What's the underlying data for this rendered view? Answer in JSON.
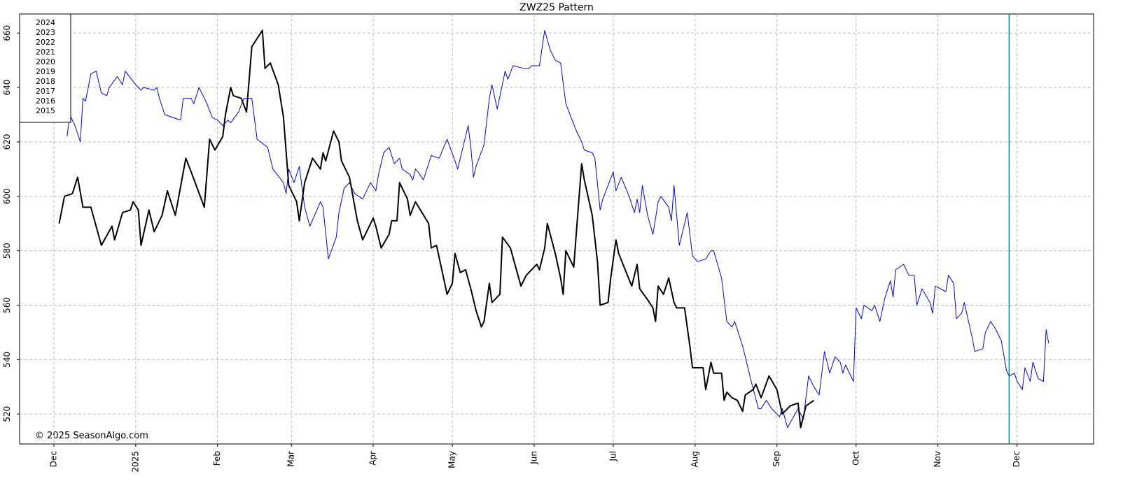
{
  "chart_data": {
    "type": "line",
    "title": "ZWZ25  Pattern",
    "watermark": "© 2025 SeasonAlgo.com",
    "legend_labels": [
      "2024",
      "2023",
      "2022",
      "2021",
      "2020",
      "2019",
      "2018",
      "2017",
      "2016",
      "2015"
    ],
    "legend_color": "#0000ff",
    "legend_position": "upper-left",
    "grid": true,
    "xlim": [
      -13,
      394
    ],
    "ylim": [
      509,
      667
    ],
    "yticks": [
      520,
      540,
      560,
      580,
      600,
      620,
      640,
      660
    ],
    "xticks": [
      {
        "value": 0,
        "label": "Dec"
      },
      {
        "value": 31,
        "label": "2025"
      },
      {
        "value": 62,
        "label": "Feb"
      },
      {
        "value": 90,
        "label": "Mar"
      },
      {
        "value": 121,
        "label": "Apr"
      },
      {
        "value": 151,
        "label": "May"
      },
      {
        "value": 182,
        "label": "Jun"
      },
      {
        "value": 212,
        "label": "Jul"
      },
      {
        "value": 243,
        "label": "Aug"
      },
      {
        "value": 274,
        "label": "Sep"
      },
      {
        "value": 304,
        "label": "Oct"
      },
      {
        "value": 335,
        "label": "Nov"
      },
      {
        "value": 365,
        "label": "Dec"
      }
    ],
    "vline": {
      "value": 362,
      "color": "#008b8b"
    },
    "series": [
      {
        "color": "#0000ff",
        "width": 1,
        "x": [
          5,
          6,
          8,
          10,
          11,
          12,
          14,
          16,
          18,
          20,
          21,
          24,
          26,
          27,
          31,
          33,
          34,
          38,
          39,
          40,
          42,
          48,
          49,
          52,
          53,
          55,
          58,
          60,
          62,
          64,
          66,
          67,
          70,
          72,
          75,
          77,
          81,
          83,
          87,
          88,
          89,
          91,
          93,
          95,
          97,
          101,
          102,
          104,
          107,
          108,
          110,
          112,
          114,
          117,
          120,
          122,
          123,
          125,
          127,
          129,
          131,
          132,
          135,
          136,
          137,
          138,
          140,
          143,
          146,
          149,
          152,
          153,
          157,
          158,
          159,
          160,
          163,
          165,
          166,
          168,
          171,
          172,
          174,
          178,
          180,
          181,
          184,
          186,
          188,
          190,
          192,
          194,
          198,
          200,
          201,
          204,
          205,
          207,
          208,
          210,
          212,
          213,
          215,
          218,
          220,
          221,
          222,
          223,
          225,
          227,
          229,
          230,
          233,
          234,
          235,
          237,
          240,
          242,
          244,
          247,
          249,
          250,
          253,
          255,
          257,
          258,
          261,
          263,
          264,
          267,
          268,
          270,
          272,
          275,
          276,
          278,
          282,
          284,
          286,
          288,
          290,
          292,
          294,
          296,
          298,
          299,
          300,
          303,
          304,
          306,
          307,
          310,
          311,
          313,
          315,
          317,
          318,
          319,
          322,
          324,
          326,
          327,
          329,
          332,
          333,
          334,
          336,
          338,
          339,
          341,
          342,
          344,
          345,
          348,
          349,
          352,
          353,
          355,
          357,
          359,
          361,
          362,
          364,
          365,
          367,
          368,
          370,
          371,
          373,
          375,
          376,
          377
        ],
        "values": [
          622,
          630,
          626,
          620,
          636,
          635,
          645,
          646,
          638,
          637,
          640,
          644,
          641,
          646,
          641,
          639,
          640,
          639,
          640,
          636,
          630,
          628,
          636,
          636,
          634,
          640,
          634,
          629,
          628,
          626,
          628,
          627,
          631,
          636,
          636,
          621,
          618,
          610,
          605,
          601,
          610,
          605,
          611,
          596,
          589,
          598,
          596,
          577,
          585,
          594,
          603,
          605,
          601,
          599,
          605,
          602,
          608,
          616,
          618,
          612,
          614,
          610,
          608,
          606,
          610,
          609,
          606,
          615,
          614,
          621,
          613,
          610,
          626,
          618,
          607,
          611,
          619,
          636,
          641,
          632,
          646,
          643,
          648,
          647,
          647,
          648,
          648,
          661,
          654,
          650,
          649,
          634,
          624,
          620,
          617,
          616,
          614,
          595,
          599,
          604,
          609,
          602,
          607,
          600,
          594,
          599,
          594,
          604,
          593,
          586,
          598,
          600,
          596,
          591,
          604,
          582,
          594,
          578,
          576,
          577,
          580,
          580,
          570,
          554,
          552,
          554,
          545,
          537,
          533,
          522,
          522,
          525,
          522,
          519,
          522,
          515,
          522,
          518,
          534,
          530,
          527,
          543,
          535,
          541,
          539,
          535,
          538,
          532,
          559,
          555,
          560,
          558,
          560,
          554,
          563,
          569,
          563,
          573,
          575,
          571,
          571,
          560,
          566,
          561,
          557,
          567,
          566,
          565,
          571,
          568,
          555,
          557,
          561,
          548,
          543,
          544,
          550,
          554,
          551,
          547,
          536,
          534,
          535,
          532,
          529,
          537,
          532,
          539,
          533,
          532,
          551,
          546
        ]
      },
      {
        "color": "#000000",
        "width": 2,
        "x": [
          2,
          4,
          7,
          9,
          11,
          14,
          16,
          18,
          22,
          23,
          26,
          29,
          30,
          32,
          33,
          36,
          38,
          41,
          43,
          46,
          50,
          52,
          57,
          59,
          61,
          64,
          65,
          67,
          68,
          71,
          73,
          75,
          79,
          80,
          82,
          85,
          87,
          89,
          92,
          93,
          95,
          98,
          101,
          102,
          103,
          106,
          108,
          109,
          112,
          115,
          117,
          121,
          122,
          124,
          127,
          128,
          130,
          131,
          134,
          135,
          137,
          142,
          143,
          145,
          149,
          151,
          152,
          154,
          156,
          158,
          160,
          162,
          163,
          165,
          166,
          169,
          170,
          173,
          177,
          179,
          183,
          184,
          186,
          187,
          190,
          192,
          193,
          194,
          197,
          198,
          200,
          201,
          204,
          206,
          207,
          210,
          211,
          213,
          214,
          219,
          221,
          222,
          225,
          227,
          228,
          229,
          231,
          233,
          235,
          236,
          239,
          241,
          242,
          246,
          247,
          249,
          250,
          253,
          254,
          255,
          257,
          259,
          261,
          262,
          265,
          266,
          268,
          271,
          274,
          276,
          279,
          282,
          283,
          285,
          288
        ],
        "values": [
          590,
          600,
          601,
          607,
          596,
          596,
          589,
          582,
          589,
          584,
          594,
          595,
          598,
          595,
          582,
          595,
          587,
          593,
          602,
          593,
          614,
          609,
          596,
          621,
          617,
          622,
          630,
          640,
          637,
          636,
          631,
          655,
          661,
          647,
          649,
          641,
          629,
          604,
          598,
          591,
          605,
          614,
          610,
          616,
          613,
          624,
          620,
          613,
          607,
          591,
          584,
          592,
          589,
          581,
          586,
          591,
          591,
          605,
          599,
          593,
          598,
          590,
          581,
          582,
          564,
          568,
          579,
          572,
          573,
          566,
          558,
          552,
          554,
          568,
          561,
          564,
          585,
          581,
          567,
          571,
          575,
          573,
          581,
          590,
          579,
          570,
          564,
          580,
          574,
          587,
          612,
          606,
          593,
          576,
          560,
          561,
          570,
          584,
          579,
          567,
          575,
          566,
          562,
          559,
          554,
          567,
          564,
          570,
          561,
          559,
          559,
          545,
          537,
          537,
          529,
          539,
          535,
          535,
          525,
          528,
          526,
          525,
          521,
          527,
          529,
          531,
          526,
          534,
          529,
          520,
          523,
          524,
          515,
          523,
          525
        ]
      }
    ]
  }
}
